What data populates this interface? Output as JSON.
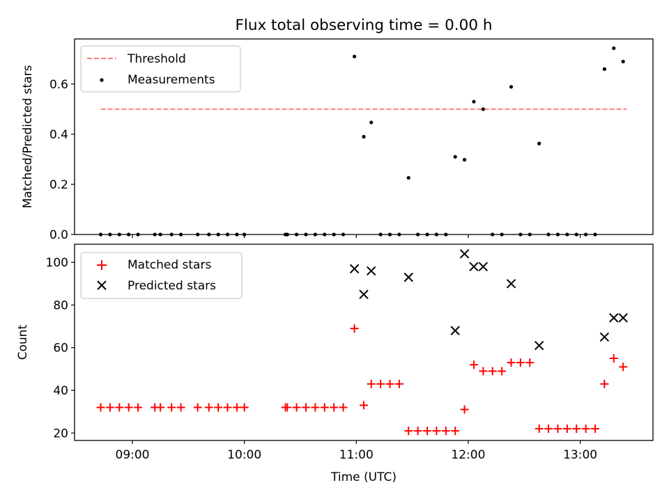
{
  "figure": {
    "title": "Flux total observing time = 0.00 h"
  },
  "chart_data": [
    {
      "type": "scatter",
      "title": "Flux total observing time = 0.00 h",
      "xlabel": "",
      "ylabel": "Matched/Predicted stars",
      "xlim": [
        "08:29",
        "13:39"
      ],
      "ylim": [
        0,
        0.78
      ],
      "yticks": [
        0.0,
        0.2,
        0.4,
        0.6
      ],
      "ytick_labels": [
        "0.0",
        "0.2",
        "0.4",
        "0.6"
      ],
      "legend": {
        "position": "top-left",
        "entries": [
          "Threshold",
          "Measurements"
        ]
      },
      "grid": false,
      "threshold": {
        "name": "Threshold",
        "y": 0.5,
        "x_start": "08:43",
        "x_end": "13:25",
        "color": "#ff7f7f",
        "style": "dashed"
      },
      "series": [
        {
          "name": "Measurements",
          "color": "#000000",
          "marker": "dot",
          "points": [
            [
              "08:43",
              0.0
            ],
            [
              "08:48",
              0.0
            ],
            [
              "08:53",
              0.0
            ],
            [
              "08:58",
              0.0
            ],
            [
              "09:03",
              0.0
            ],
            [
              "09:12",
              0.0
            ],
            [
              "09:15",
              0.0
            ],
            [
              "09:21",
              0.0
            ],
            [
              "09:26",
              0.0
            ],
            [
              "09:35",
              0.0
            ],
            [
              "09:41",
              0.0
            ],
            [
              "09:46",
              0.0
            ],
            [
              "09:51",
              0.0
            ],
            [
              "09:56",
              0.0
            ],
            [
              "10:00",
              0.0
            ],
            [
              "10:22",
              0.0
            ],
            [
              "10:23",
              0.0
            ],
            [
              "10:28",
              0.0
            ],
            [
              "10:33",
              0.0
            ],
            [
              "10:38",
              0.0
            ],
            [
              "10:43",
              0.0
            ],
            [
              "10:48",
              0.0
            ],
            [
              "10:53",
              0.0
            ],
            [
              "10:59",
              0.71
            ],
            [
              "11:04",
              0.39
            ],
            [
              "11:08",
              0.447
            ],
            [
              "11:13",
              0.0
            ],
            [
              "11:18",
              0.0
            ],
            [
              "11:23",
              0.0
            ],
            [
              "11:28",
              0.226
            ],
            [
              "11:33",
              0.0
            ],
            [
              "11:38",
              0.0
            ],
            [
              "11:43",
              0.0
            ],
            [
              "11:48",
              0.0
            ],
            [
              "11:53",
              0.31
            ],
            [
              "11:58",
              0.298
            ],
            [
              "12:03",
              0.53
            ],
            [
              "12:08",
              0.5
            ],
            [
              "12:13",
              0.0
            ],
            [
              "12:18",
              0.0
            ],
            [
              "12:23",
              0.589
            ],
            [
              "12:28",
              0.0
            ],
            [
              "12:33",
              0.0
            ],
            [
              "12:38",
              0.363
            ],
            [
              "12:43",
              0.0
            ],
            [
              "12:48",
              0.0
            ],
            [
              "12:53",
              0.0
            ],
            [
              "12:58",
              0.0
            ],
            [
              "13:03",
              0.0
            ],
            [
              "13:08",
              0.0
            ],
            [
              "13:13",
              0.66
            ],
            [
              "13:18",
              0.743
            ],
            [
              "13:23",
              0.69
            ]
          ]
        }
      ]
    },
    {
      "type": "scatter",
      "title": "",
      "xlabel": "Time (UTC)",
      "ylabel": "Count",
      "xlim": [
        "08:29",
        "13:39"
      ],
      "ylim": [
        16.5,
        108.5
      ],
      "yticks": [
        20,
        40,
        60,
        80,
        100
      ],
      "ytick_labels": [
        "20",
        "40",
        "60",
        "80",
        "100"
      ],
      "xticks": [
        "09:00",
        "10:00",
        "11:00",
        "12:00",
        "13:00"
      ],
      "xtick_labels": [
        "09:00",
        "10:00",
        "11:00",
        "12:00",
        "13:00"
      ],
      "legend": {
        "position": "top-left",
        "entries": [
          "Matched stars",
          "Predicted stars"
        ]
      },
      "grid": false,
      "series": [
        {
          "name": "Matched stars",
          "color": "#ff0000",
          "marker": "plus",
          "points": [
            [
              "08:43",
              32
            ],
            [
              "08:48",
              32
            ],
            [
              "08:53",
              32
            ],
            [
              "08:58",
              32
            ],
            [
              "09:03",
              32
            ],
            [
              "09:12",
              32
            ],
            [
              "09:15",
              32
            ],
            [
              "09:21",
              32
            ],
            [
              "09:26",
              32
            ],
            [
              "09:35",
              32
            ],
            [
              "09:41",
              32
            ],
            [
              "09:46",
              32
            ],
            [
              "09:51",
              32
            ],
            [
              "09:56",
              32
            ],
            [
              "10:00",
              32
            ],
            [
              "10:22",
              32
            ],
            [
              "10:23",
              32
            ],
            [
              "10:28",
              32
            ],
            [
              "10:33",
              32
            ],
            [
              "10:38",
              32
            ],
            [
              "10:43",
              32
            ],
            [
              "10:48",
              32
            ],
            [
              "10:53",
              32
            ],
            [
              "10:59",
              69
            ],
            [
              "11:04",
              33
            ],
            [
              "11:08",
              43
            ],
            [
              "11:13",
              43
            ],
            [
              "11:18",
              43
            ],
            [
              "11:23",
              43
            ],
            [
              "11:28",
              21
            ],
            [
              "11:33",
              21
            ],
            [
              "11:38",
              21
            ],
            [
              "11:43",
              21
            ],
            [
              "11:48",
              21
            ],
            [
              "11:53",
              21
            ],
            [
              "11:58",
              31
            ],
            [
              "12:03",
              52
            ],
            [
              "12:08",
              49
            ],
            [
              "12:13",
              49
            ],
            [
              "12:18",
              49
            ],
            [
              "12:23",
              53
            ],
            [
              "12:28",
              53
            ],
            [
              "12:33",
              53
            ],
            [
              "12:38",
              22
            ],
            [
              "12:43",
              22
            ],
            [
              "12:48",
              22
            ],
            [
              "12:53",
              22
            ],
            [
              "12:58",
              22
            ],
            [
              "13:03",
              22
            ],
            [
              "13:08",
              22
            ],
            [
              "13:13",
              43
            ],
            [
              "13:18",
              55
            ],
            [
              "13:23",
              51
            ]
          ]
        },
        {
          "name": "Predicted stars",
          "color": "#000000",
          "marker": "x",
          "points": [
            [
              "10:59",
              97
            ],
            [
              "11:04",
              85
            ],
            [
              "11:08",
              96
            ],
            [
              "11:28",
              93
            ],
            [
              "11:53",
              68
            ],
            [
              "11:58",
              104
            ],
            [
              "12:03",
              98
            ],
            [
              "12:08",
              98
            ],
            [
              "12:23",
              90
            ],
            [
              "12:38",
              61
            ],
            [
              "13:13",
              65
            ],
            [
              "13:18",
              74
            ],
            [
              "13:23",
              74
            ]
          ]
        }
      ]
    }
  ]
}
